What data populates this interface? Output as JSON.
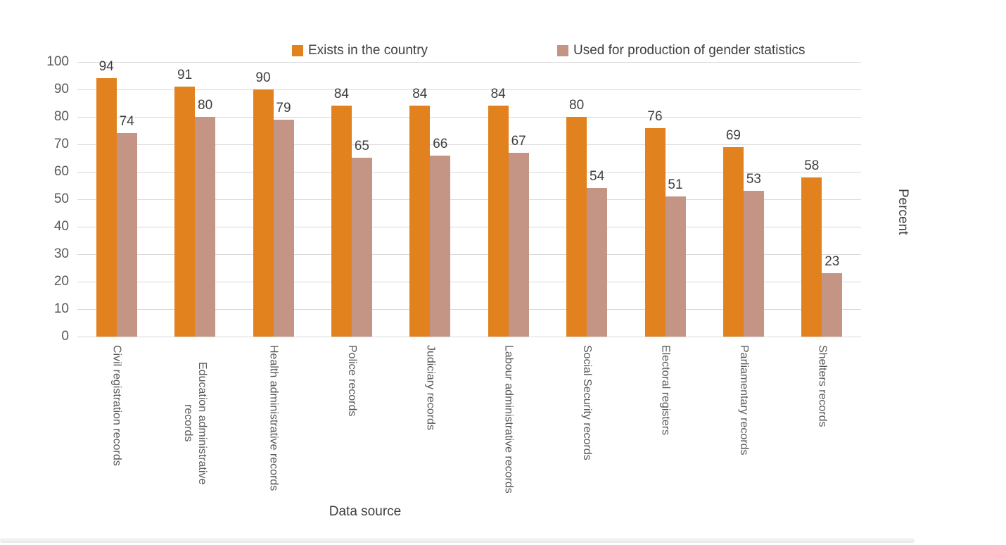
{
  "chart_data": {
    "type": "bar",
    "title": "",
    "categories": [
      "Civil registration records",
      "Education administrative records",
      "Health administrative records",
      "Police records",
      "Judiciary records",
      "Labour administrative records",
      "Social Security records",
      "Electoral registers",
      "Parliamentary records",
      "Shelters records"
    ],
    "series": [
      {
        "name": "Exists in the country",
        "color": "#E2821E",
        "values": [
          94,
          91,
          90,
          84,
          84,
          84,
          80,
          76,
          69,
          58
        ]
      },
      {
        "name": "Used for production of gender statistics",
        "color": "#C49484",
        "values": [
          74,
          80,
          79,
          65,
          66,
          67,
          54,
          51,
          53,
          23
        ]
      }
    ],
    "xlabel": "Data source",
    "ylabel": "Percent",
    "ylim": [
      0,
      100
    ],
    "yticks": [
      0,
      10,
      20,
      30,
      40,
      50,
      60,
      70,
      80,
      90,
      100
    ],
    "grid": true,
    "legend_position": "top",
    "bar_value_labels": true
  },
  "colors": {
    "gridline": "#d9d9d9",
    "axis_text": "#595959",
    "data_label": "#3f3f3f",
    "axis_title": "#3d3d3d"
  }
}
